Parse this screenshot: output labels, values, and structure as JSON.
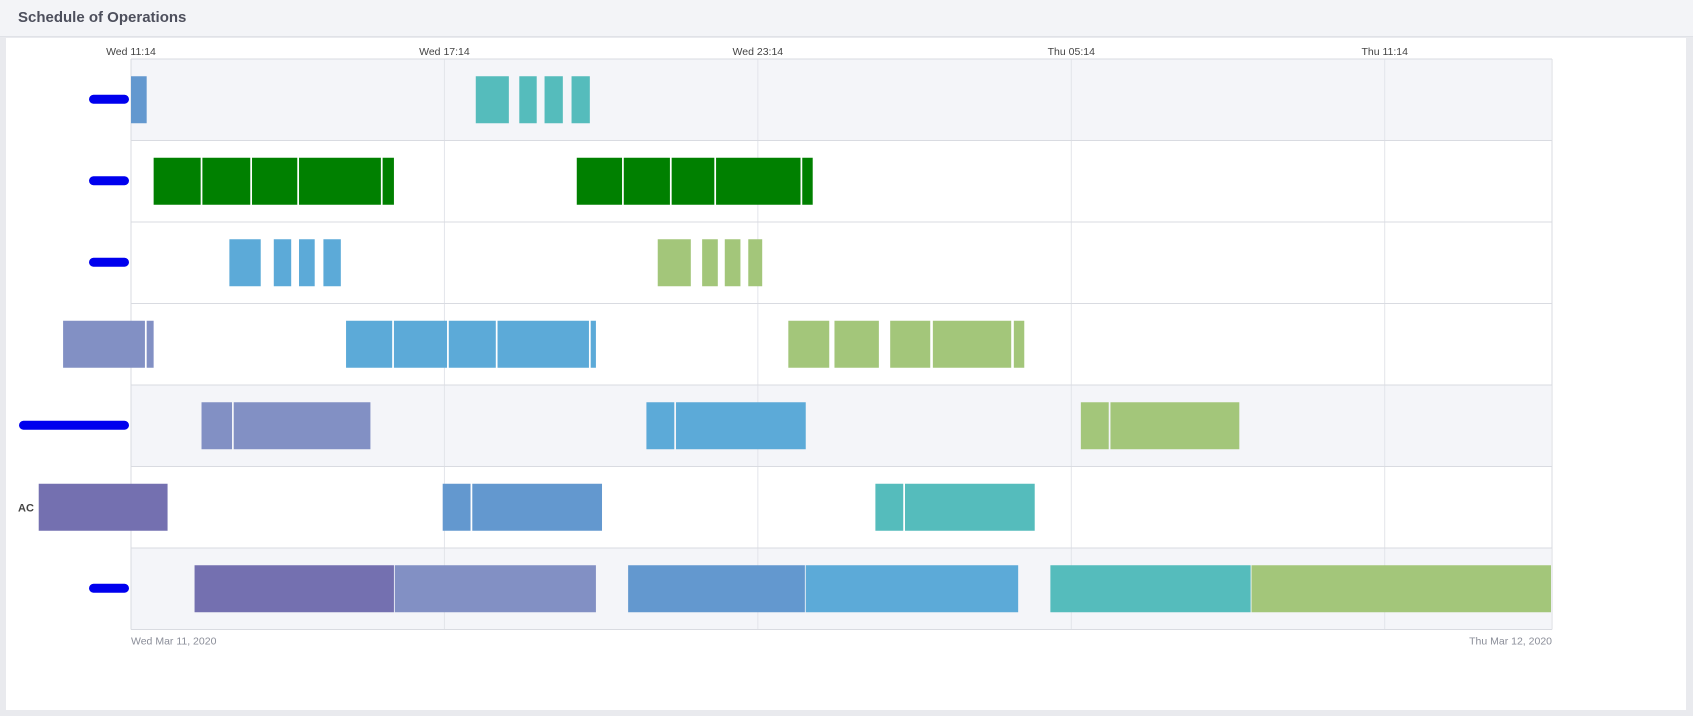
{
  "panel": {
    "title": "Schedule of Operations"
  },
  "chart_data": {
    "type": "gantt",
    "title": "",
    "x_axis": {
      "type": "datetime",
      "start": "2020-03-11T11:14",
      "end": "2020-03-12T14:25",
      "top_ticks": [
        {
          "time": "2020-03-11T11:14",
          "label": "Wed 11:14"
        },
        {
          "time": "2020-03-11T17:14",
          "label": "Wed 17:14"
        },
        {
          "time": "2020-03-11T23:14",
          "label": "Wed 23:14"
        },
        {
          "time": "2020-03-12T05:14",
          "label": "Thu 05:14"
        },
        {
          "time": "2020-03-12T11:14",
          "label": "Thu 11:14"
        }
      ],
      "bottom_labels": [
        {
          "time": "2020-03-11T11:14",
          "label": "Wed Mar 11, 2020"
        },
        {
          "time": "2020-03-12T14:25",
          "label": "Thu Mar 12, 2020"
        }
      ],
      "grid": true
    },
    "rows": [
      {
        "label": "",
        "label_redacted": true,
        "tasks": [
          {
            "start": "2020-03-11T11:14",
            "end": "2020-03-11T11:32",
            "color": "#6398cf"
          },
          {
            "start": "2020-03-11T17:50",
            "end": "2020-03-11T18:28",
            "color": "#55bcbc"
          },
          {
            "start": "2020-03-11T18:40",
            "end": "2020-03-11T19:00",
            "color": "#55bcbc"
          },
          {
            "start": "2020-03-11T19:09",
            "end": "2020-03-11T19:30",
            "color": "#55bcbc"
          },
          {
            "start": "2020-03-11T19:40",
            "end": "2020-03-11T20:01",
            "color": "#55bcbc"
          }
        ]
      },
      {
        "label": "",
        "label_redacted": true,
        "tasks": [
          {
            "start": "2020-03-11T11:40",
            "end": "2020-03-11T12:34",
            "color": "#008000"
          },
          {
            "start": "2020-03-11T12:36",
            "end": "2020-03-11T13:31",
            "color": "#008000"
          },
          {
            "start": "2020-03-11T13:33",
            "end": "2020-03-11T14:25",
            "color": "#008000"
          },
          {
            "start": "2020-03-11T14:27",
            "end": "2020-03-11T16:01",
            "color": "#008000"
          },
          {
            "start": "2020-03-11T16:03",
            "end": "2020-03-11T16:16",
            "color": "#008000"
          },
          {
            "start": "2020-03-11T19:46",
            "end": "2020-03-11T20:38",
            "color": "#008000"
          },
          {
            "start": "2020-03-11T20:40",
            "end": "2020-03-11T21:33",
            "color": "#008000"
          },
          {
            "start": "2020-03-11T21:35",
            "end": "2020-03-11T22:24",
            "color": "#008000"
          },
          {
            "start": "2020-03-11T22:26",
            "end": "2020-03-12T00:03",
            "color": "#008000"
          },
          {
            "start": "2020-03-12T00:05",
            "end": "2020-03-12T00:17",
            "color": "#008000"
          }
        ]
      },
      {
        "label": "",
        "label_redacted": true,
        "tasks": [
          {
            "start": "2020-03-11T13:07",
            "end": "2020-03-11T13:43",
            "color": "#5caad8"
          },
          {
            "start": "2020-03-11T13:58",
            "end": "2020-03-11T14:18",
            "color": "#5caad8"
          },
          {
            "start": "2020-03-11T14:27",
            "end": "2020-03-11T14:45",
            "color": "#5caad8"
          },
          {
            "start": "2020-03-11T14:55",
            "end": "2020-03-11T15:15",
            "color": "#5caad8"
          },
          {
            "start": "2020-03-11T21:19",
            "end": "2020-03-11T21:57",
            "color": "#a3c67a"
          },
          {
            "start": "2020-03-11T22:10",
            "end": "2020-03-11T22:28",
            "color": "#a3c67a"
          },
          {
            "start": "2020-03-11T22:36",
            "end": "2020-03-11T22:54",
            "color": "#a3c67a"
          },
          {
            "start": "2020-03-11T23:03",
            "end": "2020-03-11T23:19",
            "color": "#a3c67a"
          }
        ]
      },
      {
        "label": "",
        "label_redacted": false,
        "tasks": [
          {
            "start": "2020-03-11T09:56",
            "end": "2020-03-11T11:30",
            "color": "#8290c4"
          },
          {
            "start": "2020-03-11T11:32",
            "end": "2020-03-11T11:40",
            "color": "#8290c4"
          },
          {
            "start": "2020-03-11T15:21",
            "end": "2020-03-11T16:14",
            "color": "#5caad8"
          },
          {
            "start": "2020-03-11T16:16",
            "end": "2020-03-11T17:17",
            "color": "#5caad8"
          },
          {
            "start": "2020-03-11T17:19",
            "end": "2020-03-11T18:13",
            "color": "#5caad8"
          },
          {
            "start": "2020-03-11T18:15",
            "end": "2020-03-11T20:00",
            "color": "#5caad8"
          },
          {
            "start": "2020-03-11T20:02",
            "end": "2020-03-11T20:08",
            "color": "#5caad8"
          },
          {
            "start": "2020-03-11T23:49",
            "end": "2020-03-12T00:36",
            "color": "#a3c67a"
          },
          {
            "start": "2020-03-12T00:42",
            "end": "2020-03-12T01:33",
            "color": "#a3c67a"
          },
          {
            "start": "2020-03-12T01:46",
            "end": "2020-03-12T02:32",
            "color": "#a3c67a"
          },
          {
            "start": "2020-03-12T02:35",
            "end": "2020-03-12T04:05",
            "color": "#a3c67a"
          },
          {
            "start": "2020-03-12T04:08",
            "end": "2020-03-12T04:20",
            "color": "#a3c67a"
          }
        ]
      },
      {
        "label": "",
        "label_redacted": true,
        "tasks": [
          {
            "start": "2020-03-11T12:35",
            "end": "2020-03-11T13:10",
            "color": "#8290c4"
          },
          {
            "start": "2020-03-11T13:12",
            "end": "2020-03-11T15:49",
            "color": "#8290c4"
          },
          {
            "start": "2020-03-11T21:06",
            "end": "2020-03-11T21:38",
            "color": "#5caad8"
          },
          {
            "start": "2020-03-11T21:40",
            "end": "2020-03-12T00:09",
            "color": "#5caad8"
          },
          {
            "start": "2020-03-12T05:25",
            "end": "2020-03-12T05:57",
            "color": "#a3c67a"
          },
          {
            "start": "2020-03-12T05:59",
            "end": "2020-03-12T08:27",
            "color": "#a3c67a"
          }
        ]
      },
      {
        "label": "AC",
        "label_redacted": false,
        "tasks": [
          {
            "start": "2020-03-11T09:28",
            "end": "2020-03-11T11:56",
            "color": "#7470b0"
          },
          {
            "start": "2020-03-11T17:12",
            "end": "2020-03-11T17:44",
            "color": "#6398cf"
          },
          {
            "start": "2020-03-11T17:46",
            "end": "2020-03-11T20:15",
            "color": "#6398cf"
          },
          {
            "start": "2020-03-12T01:29",
            "end": "2020-03-12T02:01",
            "color": "#55bcbc"
          },
          {
            "start": "2020-03-12T02:03",
            "end": "2020-03-12T04:32",
            "color": "#55bcbc"
          }
        ]
      },
      {
        "label": "",
        "label_redacted": true,
        "tasks": [
          {
            "start": "2020-03-11T12:27",
            "end": "2020-03-11T16:16",
            "color": "#7470b0"
          },
          {
            "start": "2020-03-11T16:17",
            "end": "2020-03-11T20:08",
            "color": "#8290c4"
          },
          {
            "start": "2020-03-11T20:45",
            "end": "2020-03-12T00:08",
            "color": "#6398cf"
          },
          {
            "start": "2020-03-12T00:09",
            "end": "2020-03-12T04:13",
            "color": "#5caad8"
          },
          {
            "start": "2020-03-12T04:50",
            "end": "2020-03-12T08:40",
            "color": "#55bcbc"
          },
          {
            "start": "2020-03-12T08:41",
            "end": "2020-03-12T14:25",
            "color": "#a3c67a"
          }
        ]
      }
    ]
  }
}
